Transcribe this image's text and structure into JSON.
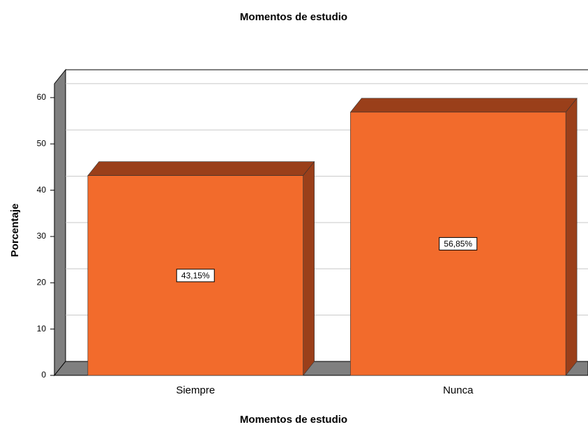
{
  "chart_data": {
    "type": "bar3d",
    "title": "Momentos de estudio",
    "x_label": "Momentos de estudio",
    "y_label": "Porcentaje",
    "categories": [
      "Siempre",
      "Nunca"
    ],
    "values": [
      43.15,
      56.85
    ],
    "value_labels": [
      "43,15%",
      "56,85%"
    ],
    "color": "#f26b2c",
    "ylim": [
      0,
      63
    ],
    "yticks": [
      0,
      10,
      20,
      30,
      40,
      50,
      60
    ],
    "grid": true
  }
}
